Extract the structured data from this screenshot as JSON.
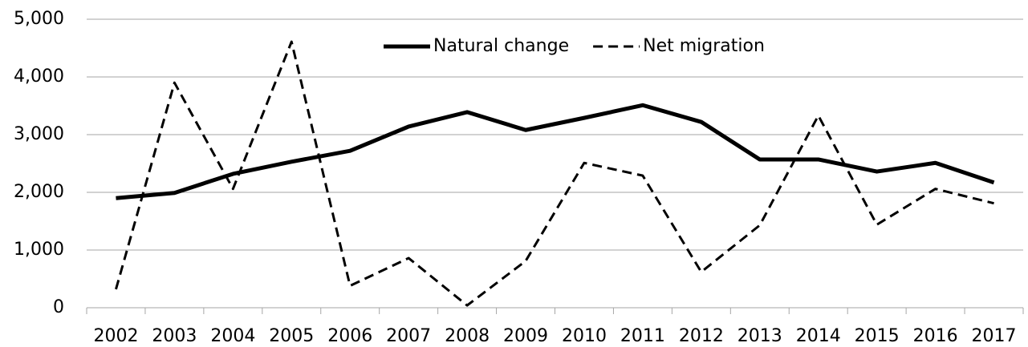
{
  "chart_data": {
    "type": "line",
    "categories": [
      "2002",
      "2003",
      "2004",
      "2005",
      "2006",
      "2007",
      "2008",
      "2009",
      "2010",
      "2011",
      "2012",
      "2013",
      "2014",
      "2015",
      "2016",
      "2017"
    ],
    "series": [
      {
        "name": "Natural change",
        "color": "#000000",
        "style": "solid",
        "values": [
          1900,
          1990,
          2320,
          2530,
          2720,
          3140,
          3390,
          3080,
          3290,
          3510,
          3220,
          2570,
          2570,
          2360,
          2510,
          2170
        ]
      },
      {
        "name": "Net migration",
        "color": "#000000",
        "style": "dashed",
        "values": [
          320,
          3900,
          2060,
          4610,
          380,
          860,
          40,
          810,
          2510,
          2290,
          620,
          1430,
          3330,
          1440,
          2060,
          1810
        ]
      }
    ],
    "ylim": [
      0,
      5000
    ],
    "yticks": [
      0,
      {
        "value": 1000,
        "label": "1,000"
      },
      {
        "value": 2000,
        "label": "2,000"
      },
      {
        "value": 3000,
        "label": "3,000"
      },
      {
        "value": 4000,
        "label": "4,000"
      },
      {
        "value": 5000,
        "label": "5,000"
      }
    ],
    "grid": true,
    "legend": "top"
  }
}
